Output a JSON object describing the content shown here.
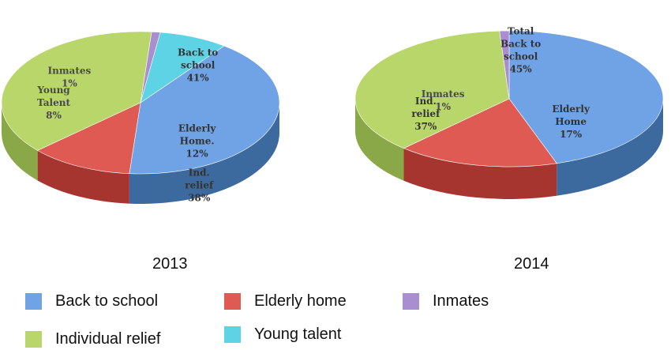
{
  "chart_data": [
    {
      "type": "pie",
      "title": "2013",
      "slices": [
        {
          "label_lines": [
            "Back to",
            "school",
            "41%"
          ],
          "category": "Back to school",
          "value": 41,
          "color": "#6fa3e6",
          "side": "#3c6a9e"
        },
        {
          "label_lines": [
            "Elderly",
            "Home.",
            "12%"
          ],
          "category": "Elderly home",
          "value": 12,
          "color": "#df5a52",
          "side": "#a6352f"
        },
        {
          "label_lines": [
            "Ind.",
            "relief",
            "38%"
          ],
          "category": "Individual relief",
          "value": 38,
          "color": "#b8d66a",
          "side": "#8aa847"
        },
        {
          "label_lines": [
            "Inmates",
            "1%"
          ],
          "category": "Inmates",
          "value": 1,
          "color": "#a98fd0",
          "side": "#7a62a3"
        },
        {
          "label_lines": [
            "Young",
            "Talent",
            "8%"
          ],
          "category": "Young talent",
          "value": 8,
          "color": "#5fd3e6",
          "side": "#3aa0b1"
        }
      ]
    },
    {
      "type": "pie",
      "title": "2014",
      "slices": [
        {
          "label_lines": [
            "Total",
            "Back to",
            "school",
            "45%"
          ],
          "category": "Back to school",
          "value": 45,
          "color": "#6fa3e6",
          "side": "#3c6a9e"
        },
        {
          "label_lines": [
            "Elderly",
            "Home",
            "17%"
          ],
          "category": "Elderly home",
          "value": 17,
          "color": "#df5a52",
          "side": "#a6352f"
        },
        {
          "label_lines": [
            "Ind.",
            "relief",
            "37%"
          ],
          "category": "Individual relief",
          "value": 37,
          "color": "#b8d66a",
          "side": "#8aa847"
        },
        {
          "label_lines": [
            "Inmates",
            "1%"
          ],
          "category": "Inmates",
          "value": 1,
          "color": "#a98fd0",
          "side": "#7a62a3"
        }
      ]
    }
  ],
  "legend": [
    {
      "label": "Back to school",
      "color": "#6fa3e6"
    },
    {
      "label": "Elderly home",
      "color": "#df5a52"
    },
    {
      "label": "Inmates",
      "color": "#a98fd0"
    },
    {
      "label": "Individual relief",
      "color": "#b8d66a"
    },
    {
      "label": "Young talent",
      "color": "#5fd3e6"
    }
  ]
}
